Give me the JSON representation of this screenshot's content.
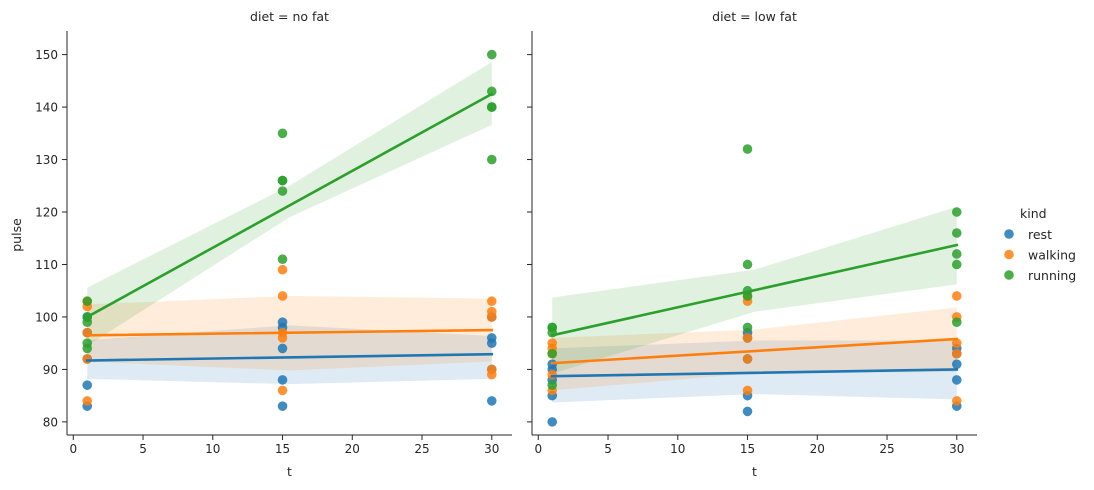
{
  "chart_data": {
    "type": "scatter",
    "ylabel": "pulse",
    "ylim": [
      77.5,
      154.5
    ],
    "yticks": [
      80,
      90,
      100,
      110,
      120,
      130,
      140,
      150
    ],
    "xlim": [
      -0.45,
      31.45
    ],
    "xticks": [
      0,
      5,
      10,
      15,
      20,
      25,
      30
    ],
    "grid": false,
    "legend": {
      "title": "kind",
      "placement": "right",
      "items": [
        {
          "label": "rest",
          "color": "#1f77b4"
        },
        {
          "label": "walking",
          "color": "#ff7f0e"
        },
        {
          "label": "running",
          "color": "#2ca02c"
        }
      ]
    },
    "panels": [
      {
        "title": "diet = no fat",
        "xlabel": "t",
        "series": [
          {
            "name": "rest",
            "color": "#1f77b4",
            "points": [
              [
                1,
                83
              ],
              [
                1,
                87
              ],
              [
                1,
                92
              ],
              [
                1,
                97
              ],
              [
                1,
                100
              ],
              [
                15,
                83
              ],
              [
                15,
                88
              ],
              [
                15,
                94
              ],
              [
                15,
                98
              ],
              [
                15,
                99
              ],
              [
                30,
                84
              ],
              [
                30,
                95
              ],
              [
                30,
                96
              ],
              [
                30,
                90
              ],
              [
                30,
                100
              ]
            ],
            "fit": [
              91.7,
              92.9
            ],
            "ci_low": [
              88.2,
              87.2,
              88.2
            ],
            "ci_high": [
              95.6,
              98.4,
              96.4
            ]
          },
          {
            "name": "walking",
            "color": "#ff7f0e",
            "points": [
              [
                1,
                84
              ],
              [
                1,
                92
              ],
              [
                1,
                97
              ],
              [
                1,
                102
              ],
              [
                1,
                103
              ],
              [
                15,
                86
              ],
              [
                15,
                96
              ],
              [
                15,
                97
              ],
              [
                15,
                104
              ],
              [
                15,
                109
              ],
              [
                30,
                89
              ],
              [
                30,
                90
              ],
              [
                30,
                100
              ],
              [
                30,
                101
              ],
              [
                30,
                103
              ]
            ],
            "fit": [
              96.5,
              97.5
            ],
            "ci_low": [
              91.5,
              89.8,
              91.5
            ],
            "ci_high": [
              102.4,
              104.0,
              103.5
            ]
          },
          {
            "name": "running",
            "color": "#2ca02c",
            "points": [
              [
                1,
                94
              ],
              [
                1,
                95
              ],
              [
                1,
                99
              ],
              [
                1,
                100
              ],
              [
                1,
                103
              ],
              [
                15,
                111
              ],
              [
                15,
                124
              ],
              [
                15,
                126
              ],
              [
                15,
                126
              ],
              [
                15,
                135
              ],
              [
                30,
                130
              ],
              [
                30,
                140
              ],
              [
                30,
                140
              ],
              [
                30,
                143
              ],
              [
                30,
                150
              ]
            ],
            "fit": [
              100.0,
              142.5
            ],
            "ci_low": [
              94.5,
              119.0,
              136.6
            ],
            "ci_high": [
              105.6,
              125.0,
              148.6
            ]
          }
        ]
      },
      {
        "title": "diet = low fat",
        "xlabel": "t",
        "series": [
          {
            "name": "rest",
            "color": "#1f77b4",
            "points": [
              [
                1,
                80
              ],
              [
                1,
                85
              ],
              [
                1,
                88
              ],
              [
                1,
                90
              ],
              [
                1,
                91
              ],
              [
                15,
                82
              ],
              [
                15,
                85
              ],
              [
                15,
                92
              ],
              [
                15,
                96
              ],
              [
                15,
                97
              ],
              [
                30,
                83
              ],
              [
                30,
                88
              ],
              [
                30,
                91
              ],
              [
                30,
                93
              ],
              [
                30,
                94
              ]
            ],
            "fit": [
              88.7,
              90.0
            ],
            "ci_low": [
              83.7,
              85.3,
              84.3
            ],
            "ci_high": [
              94.0,
              95.5,
              95.5
            ]
          },
          {
            "name": "walking",
            "color": "#ff7f0e",
            "points": [
              [
                1,
                86
              ],
              [
                1,
                89
              ],
              [
                1,
                93
              ],
              [
                1,
                94
              ],
              [
                1,
                95
              ],
              [
                15,
                86
              ],
              [
                15,
                92
              ],
              [
                15,
                96
              ],
              [
                15,
                103
              ],
              [
                15,
                104
              ],
              [
                30,
                84
              ],
              [
                30,
                93
              ],
              [
                30,
                95
              ],
              [
                30,
                100
              ],
              [
                30,
                104
              ]
            ],
            "fit": [
              91.2,
              95.8
            ],
            "ci_low": [
              86.0,
              89.3,
              89.5
            ],
            "ci_high": [
              96.0,
              97.6,
              101.8
            ]
          },
          {
            "name": "running",
            "color": "#2ca02c",
            "points": [
              [
                1,
                87
              ],
              [
                1,
                93
              ],
              [
                1,
                97
              ],
              [
                1,
                98
              ],
              [
                1,
                98
              ],
              [
                15,
                98
              ],
              [
                15,
                104
              ],
              [
                15,
                105
              ],
              [
                15,
                110
              ],
              [
                15,
                132
              ],
              [
                30,
                99
              ],
              [
                30,
                110
              ],
              [
                30,
                112
              ],
              [
                30,
                116
              ],
              [
                30,
                120
              ]
            ],
            "fit": [
              96.5,
              113.7
            ],
            "ci_low": [
              89.2,
              101.0,
              106.2
            ],
            "ci_high": [
              103.7,
              109.0,
              121.0
            ]
          }
        ]
      }
    ]
  }
}
